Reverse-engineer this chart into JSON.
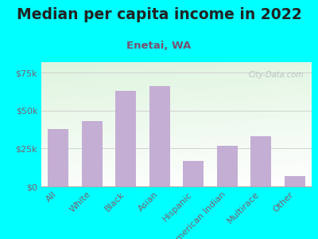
{
  "title": "Median per capita income in 2022",
  "subtitle": "Enetai, WA",
  "categories": [
    "All",
    "White",
    "Black",
    "Asian",
    "Hispanic",
    "American Indian",
    "Multirace",
    "Other"
  ],
  "values": [
    38000,
    43000,
    63000,
    66000,
    17000,
    27000,
    33000,
    7000
  ],
  "bar_color": "#c4aed4",
  "background_outer": "#00FFFF",
  "title_color": "#222222",
  "subtitle_color": "#7a5070",
  "tick_label_color": "#7a6070",
  "ytick_labels": [
    "$0",
    "$25k",
    "$50k",
    "$75k"
  ],
  "ytick_values": [
    0,
    25000,
    50000,
    75000
  ],
  "ylim": [
    0,
    82000
  ],
  "watermark": "City-Data.com",
  "title_fontsize": 13.5,
  "subtitle_fontsize": 9.5,
  "tick_fontsize": 8
}
